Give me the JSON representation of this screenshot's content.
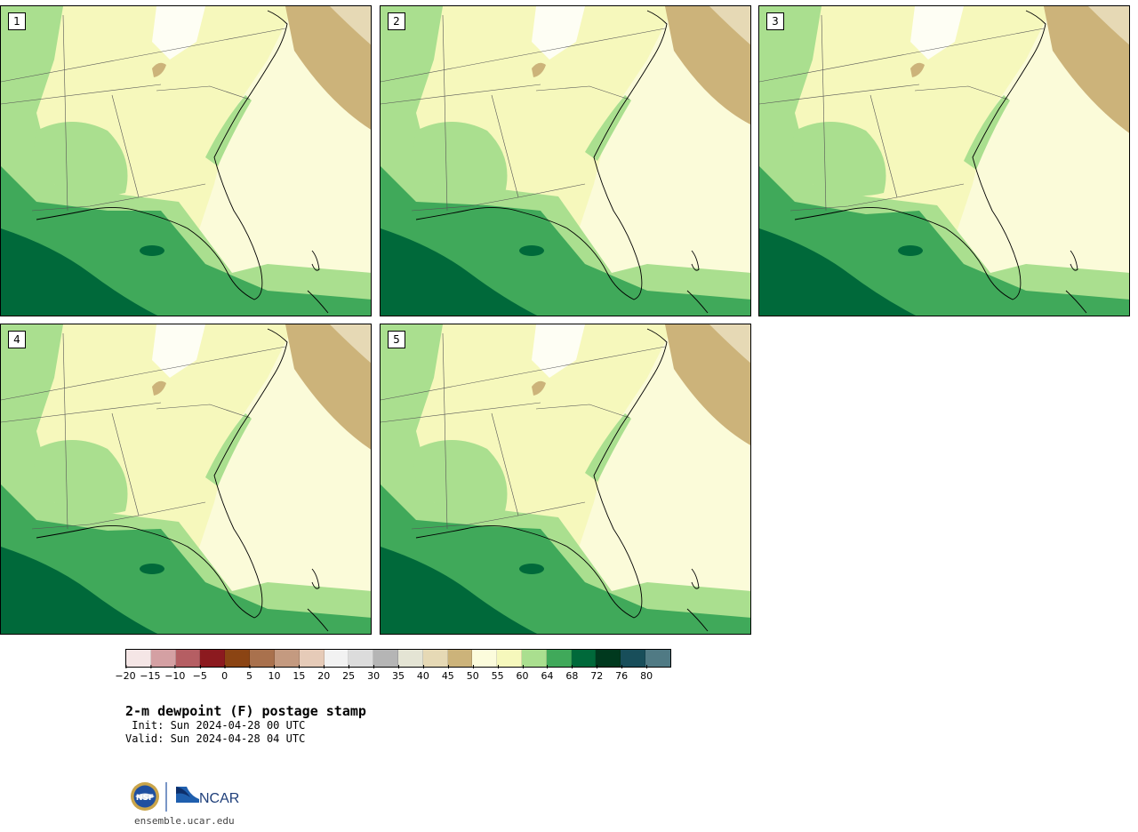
{
  "panels": [
    {
      "label": "1"
    },
    {
      "label": "2"
    },
    {
      "label": "3"
    },
    {
      "label": "4"
    },
    {
      "label": "5"
    }
  ],
  "colorbar": {
    "colors": [
      "#f5e6e6",
      "#d4a0a3",
      "#b55e63",
      "#8c1a1f",
      "#8b4413",
      "#a9714d",
      "#c49a80",
      "#e6cbb8",
      "#f2f2f2",
      "#dcdcdc",
      "#b5b5b5",
      "#e4e4d4",
      "#e6d9b5",
      "#ccb37a",
      "#fcfcdc",
      "#f6f8bc",
      "#aadf8f",
      "#40a95a",
      "#00693a",
      "#00391e",
      "#184e5a",
      "#507a84"
    ],
    "ticks": [
      "−20",
      "−15",
      "−10",
      "−5",
      "0",
      "5",
      "10",
      "15",
      "20",
      "25",
      "30",
      "35",
      "40",
      "45",
      "50",
      "55",
      "60",
      "64",
      "68",
      "72",
      "76",
      "80"
    ]
  },
  "title": "2-m dewpoint (F) postage stamp",
  "init_line": " Init: Sun 2024-04-28 00 UTC",
  "valid_line": "Valid: Sun 2024-04-28 04 UTC",
  "logo": {
    "org_text": "NCAR",
    "seal_text": "NSF"
  },
  "site": "ensemble.ucar.edu"
}
